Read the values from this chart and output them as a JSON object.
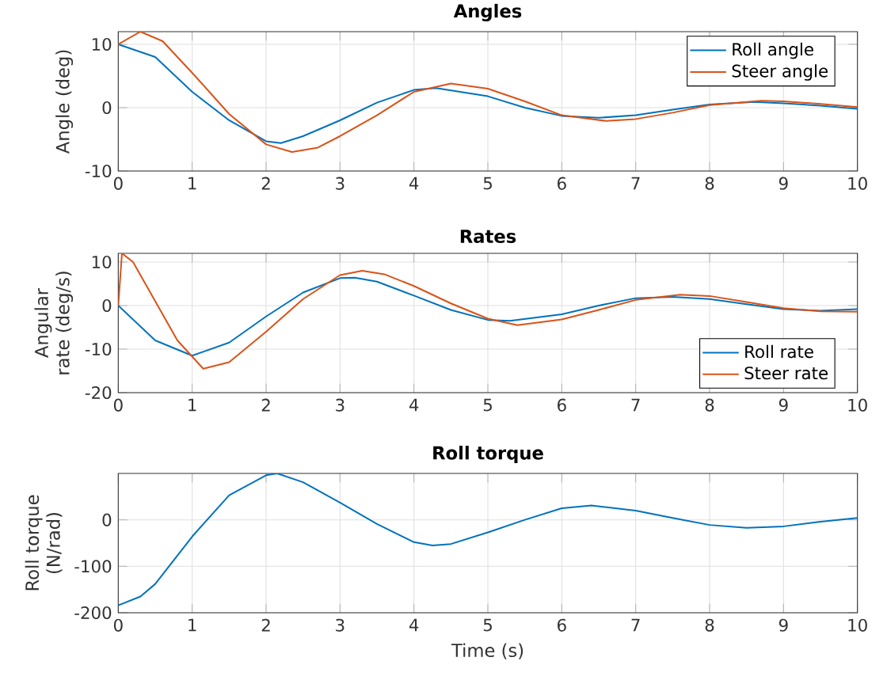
{
  "chart_data": [
    {
      "type": "line",
      "title": "Angles",
      "ylabel": "Angle (deg)",
      "xlim": [
        0,
        10
      ],
      "ylim": [
        -10,
        12
      ],
      "xticks": [
        0,
        1,
        2,
        3,
        4,
        5,
        6,
        7,
        8,
        9,
        10
      ],
      "yticks": [
        -10,
        0,
        10
      ],
      "grid": true,
      "legend": "top right",
      "series": [
        {
          "name": "Roll angle",
          "color": "#0072bd",
          "x": [
            0,
            0.5,
            1,
            1.5,
            2,
            2.2,
            2.5,
            3,
            3.5,
            4,
            4.3,
            5,
            5.5,
            6,
            6.5,
            7,
            7.5,
            8,
            8.6,
            9,
            9.5,
            10
          ],
          "values": [
            10,
            8,
            2.5,
            -2,
            -5.3,
            -5.6,
            -4.5,
            -2,
            0.8,
            2.8,
            3.1,
            1.8,
            0,
            -1.3,
            -1.6,
            -1.2,
            -0.3,
            0.5,
            0.9,
            0.7,
            0.3,
            -0.2
          ]
        },
        {
          "name": "Steer angle",
          "color": "#d95319",
          "x": [
            0,
            0.3,
            0.6,
            1,
            1.5,
            2,
            2.35,
            2.7,
            3,
            3.5,
            4,
            4.5,
            5,
            5.5,
            6,
            6.6,
            7,
            7.5,
            8,
            8.7,
            9,
            9.5,
            10
          ],
          "values": [
            10,
            12,
            10.5,
            5.5,
            -1,
            -5.8,
            -7,
            -6.3,
            -4.5,
            -1.2,
            2.5,
            3.8,
            3,
            1,
            -1.2,
            -2.1,
            -1.8,
            -0.8,
            0.4,
            1.1,
            1,
            0.6,
            0.1
          ]
        }
      ]
    },
    {
      "type": "line",
      "title": "Rates",
      "ylabel": "Angular rate (deg/s)",
      "xlim": [
        0,
        10
      ],
      "ylim": [
        -20,
        12
      ],
      "xticks": [
        0,
        1,
        2,
        3,
        4,
        5,
        6,
        7,
        8,
        9,
        10
      ],
      "yticks": [
        -20,
        -10,
        0,
        10
      ],
      "grid": true,
      "legend": "bottom right",
      "series": [
        {
          "name": "Roll rate",
          "color": "#0072bd",
          "x": [
            0,
            0.5,
            1,
            1.5,
            2,
            2.5,
            3,
            3.2,
            3.5,
            4,
            4.5,
            5,
            5.3,
            6,
            6.5,
            7,
            7.5,
            8,
            8.5,
            9,
            9.5,
            10
          ],
          "values": [
            0,
            -8,
            -11.5,
            -8.5,
            -2.5,
            3,
            6.3,
            6.4,
            5.5,
            2.3,
            -1,
            -3.3,
            -3.5,
            -2,
            0,
            1.7,
            2,
            1.5,
            0.3,
            -0.8,
            -1.2,
            -0.8
          ]
        },
        {
          "name": "Steer rate",
          "color": "#d95319",
          "x": [
            0,
            0.05,
            0.2,
            0.5,
            0.8,
            1.15,
            1.5,
            2,
            2.5,
            3,
            3.3,
            3.6,
            4,
            4.5,
            5,
            5.4,
            6,
            6.5,
            7,
            7.6,
            8,
            8.5,
            9,
            9.5,
            10
          ],
          "values": [
            0,
            12,
            10,
            1,
            -8,
            -14.5,
            -13,
            -6,
            1.5,
            7,
            8,
            7.2,
            4.5,
            0.5,
            -3,
            -4.5,
            -3.2,
            -1,
            1.3,
            2.5,
            2.2,
            0.8,
            -0.6,
            -1.3,
            -1.4
          ]
        }
      ]
    },
    {
      "type": "line",
      "title": "Roll torque",
      "xlabel": "Time (s)",
      "ylabel": "Roll torque (N/rad)",
      "xlim": [
        0,
        10
      ],
      "ylim": [
        -200,
        100
      ],
      "xticks": [
        0,
        1,
        2,
        3,
        4,
        5,
        6,
        7,
        8,
        9,
        10
      ],
      "yticks": [
        -200,
        -100,
        0
      ],
      "grid": true,
      "series": [
        {
          "color": "#0072bd",
          "x": [
            0,
            0.3,
            0.5,
            1,
            1.5,
            2,
            2.15,
            2.5,
            3,
            3.5,
            4,
            4.25,
            4.5,
            5,
            5.5,
            6,
            6.4,
            7,
            7.5,
            8,
            8.5,
            9,
            9.5,
            10
          ],
          "values": [
            -184,
            -165,
            -138,
            -36,
            53,
            96,
            100,
            81,
            37,
            -9,
            -48,
            -55,
            -52,
            -27,
            0,
            25,
            31,
            20,
            4,
            -11,
            -17,
            -14,
            -4,
            4
          ]
        }
      ]
    }
  ]
}
